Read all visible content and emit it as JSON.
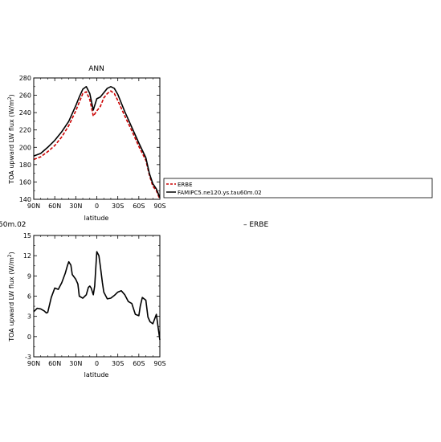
{
  "figure": {
    "side_text_left": "50m.02",
    "side_text_right": "– ERBE"
  },
  "chart_data": [
    {
      "type": "line",
      "title": "ANN",
      "xlabel": "latitude",
      "ylabel": "TOA upward LW flux (W/m²)",
      "xlim": [
        -90,
        90
      ],
      "ylim": [
        140,
        280
      ],
      "x_tick_values": [
        -90,
        -60,
        -30,
        0,
        30,
        60,
        90
      ],
      "x_tick_labels": [
        "90N",
        "60N",
        "30N",
        "0",
        "30S",
        "60S",
        "90S"
      ],
      "y_ticks": [
        140,
        160,
        180,
        200,
        220,
        240,
        260,
        280
      ],
      "legend": {
        "placement": "right-of-plot",
        "entries": [
          "ERBE",
          "FAMIPC5.ne120.ys.tau60m.02"
        ]
      },
      "series": [
        {
          "name": "ERBE",
          "color": "#cc0000",
          "style": "dashed",
          "x": [
            -90,
            -80,
            -70,
            -60,
            -50,
            -40,
            -30,
            -25,
            -20,
            -15,
            -10,
            -5,
            0,
            5,
            10,
            15,
            20,
            25,
            30,
            40,
            50,
            60,
            70,
            75,
            80,
            85,
            90
          ],
          "y": [
            186,
            189,
            195,
            202,
            212,
            225,
            242,
            252,
            262,
            264,
            255,
            236,
            242,
            247,
            257,
            262,
            265,
            262,
            254,
            236,
            219,
            201,
            185,
            168,
            155,
            150,
            140
          ]
        },
        {
          "name": "FAMIPC5.ne120.ys.tau60m.02",
          "color": "#000000",
          "style": "solid",
          "x": [
            -90,
            -80,
            -70,
            -60,
            -50,
            -40,
            -30,
            -25,
            -20,
            -15,
            -10,
            -5,
            0,
            5,
            10,
            15,
            20,
            25,
            30,
            40,
            50,
            60,
            70,
            75,
            80,
            85,
            90
          ],
          "y": [
            190,
            193,
            200,
            208,
            218,
            230,
            248,
            258,
            267,
            270,
            262,
            243,
            256,
            258,
            263,
            268,
            270,
            268,
            261,
            241,
            223,
            205,
            188,
            170,
            158,
            152,
            142
          ]
        }
      ]
    },
    {
      "type": "line",
      "title": "",
      "xlabel": "latitude",
      "ylabel": "TOA upward LW flux (W/m²)",
      "xlim": [
        -90,
        90
      ],
      "ylim": [
        -3,
        15
      ],
      "x_tick_values": [
        -90,
        -60,
        -30,
        0,
        30,
        60,
        90
      ],
      "x_tick_labels": [
        "90N",
        "60N",
        "30N",
        "0",
        "30S",
        "60S",
        "90S"
      ],
      "y_ticks": [
        -3,
        0,
        3,
        6,
        9,
        12,
        15
      ],
      "series": [
        {
          "color": "#000000",
          "style": "solid",
          "x": [
            -90,
            -85,
            -80,
            -75,
            -72,
            -70,
            -65,
            -60,
            -55,
            -50,
            -45,
            -42,
            -40,
            -37,
            -35,
            -30,
            -27,
            -25,
            -20,
            -17,
            -15,
            -12,
            -10,
            -8,
            -5,
            -3,
            0,
            3,
            5,
            8,
            10,
            15,
            20,
            25,
            30,
            35,
            40,
            45,
            50,
            55,
            60,
            62,
            65,
            70,
            73,
            76,
            80,
            85,
            90
          ],
          "y": [
            3.7,
            4.2,
            4.1,
            3.8,
            3.5,
            3.6,
            5.8,
            7.2,
            7.0,
            8.0,
            9.4,
            10.5,
            11.1,
            10.6,
            9.2,
            8.5,
            7.8,
            6.0,
            5.7,
            6.0,
            6.2,
            7.3,
            7.5,
            7.2,
            6.2,
            7.5,
            12.6,
            12.0,
            10.5,
            8.0,
            6.6,
            5.6,
            5.7,
            6.1,
            6.6,
            6.8,
            6.2,
            5.2,
            4.9,
            3.3,
            3.1,
            4.5,
            5.8,
            5.4,
            2.9,
            2.2,
            1.9,
            3.3,
            -0.5
          ]
        }
      ]
    }
  ]
}
